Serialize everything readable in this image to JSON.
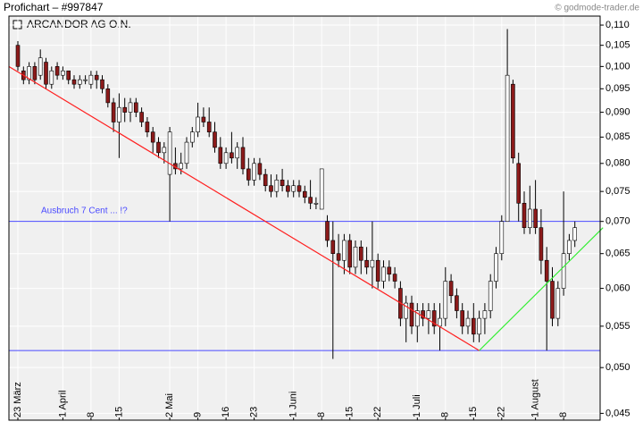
{
  "chart_data": {
    "type": "candlestick",
    "title": "Profichart – #997847",
    "source": "© godmode-trader.de",
    "annotation": "Ausbruch 7 Cent  ... !?",
    "log_scale": true,
    "grid": true,
    "ylim": [
      0.0443,
      0.1123
    ],
    "yticks": [
      {
        "value": 0.045,
        "label": "0,045"
      },
      {
        "value": 0.05,
        "label": "0,050"
      },
      {
        "value": 0.055,
        "label": "0,055"
      },
      {
        "value": 0.06,
        "label": "0,060"
      },
      {
        "value": 0.065,
        "label": "0,065"
      },
      {
        "value": 0.07,
        "label": "0,070"
      },
      {
        "value": 0.075,
        "label": "0,075"
      },
      {
        "value": 0.08,
        "label": "0,080"
      },
      {
        "value": 0.085,
        "label": "0,085"
      },
      {
        "value": 0.09,
        "label": "0,090"
      },
      {
        "value": 0.095,
        "label": "0,095"
      },
      {
        "value": 0.1,
        "label": "0,100"
      },
      {
        "value": 0.105,
        "label": "0,105"
      },
      {
        "value": 0.11,
        "label": "0,110"
      }
    ],
    "categories": [
      "23 März",
      null,
      null,
      null,
      null,
      null,
      null,
      null,
      "1 April",
      null,
      null,
      null,
      null,
      "8",
      null,
      null,
      null,
      null,
      "15",
      null,
      null,
      null,
      null,
      null,
      null,
      null,
      null,
      "2 Mai",
      null,
      null,
      null,
      null,
      "9",
      null,
      null,
      null,
      null,
      "16",
      null,
      null,
      null,
      null,
      "23",
      null,
      null,
      null,
      null,
      null,
      null,
      "1 Juni",
      null,
      null,
      null,
      null,
      "8",
      null,
      null,
      null,
      null,
      "15",
      null,
      null,
      null,
      null,
      "22",
      null,
      null,
      null,
      null,
      null,
      null,
      "1 Juli",
      null,
      null,
      null,
      null,
      "8",
      null,
      null,
      null,
      null,
      "15",
      null,
      null,
      null,
      null,
      "22",
      null,
      null,
      null,
      null,
      null,
      "1 August",
      null,
      null,
      null,
      null,
      "8",
      null,
      null
    ],
    "series": [
      {
        "name": "ARCANDOR AG O.N.",
        "up_color": "#ffffff",
        "down_color": "#8b1a1a",
        "ohlc": [
          [
            0.105,
            0.106,
            0.099,
            0.1
          ],
          [
            0.099,
            0.1,
            0.096,
            0.097
          ],
          [
            0.097,
            0.101,
            0.096,
            0.1
          ],
          [
            0.1,
            0.101,
            0.096,
            0.097
          ],
          [
            0.098,
            0.104,
            0.097,
            0.102
          ],
          [
            0.101,
            0.102,
            0.095,
            0.096
          ],
          [
            0.096,
            0.1,
            0.095,
            0.099
          ],
          [
            0.1,
            0.101,
            0.097,
            0.098
          ],
          [
            0.098,
            0.1,
            0.097,
            0.099
          ],
          [
            0.099,
            0.099,
            0.096,
            0.097
          ],
          [
            0.097,
            0.098,
            0.095,
            0.096
          ],
          [
            0.096,
            0.098,
            0.095,
            0.097
          ],
          [
            0.097,
            0.098,
            0.096,
            0.097
          ],
          [
            0.096,
            0.099,
            0.095,
            0.098
          ],
          [
            0.098,
            0.099,
            0.095,
            0.097
          ],
          [
            0.097,
            0.098,
            0.094,
            0.095
          ],
          [
            0.095,
            0.096,
            0.091,
            0.092
          ],
          [
            0.092,
            0.093,
            0.086,
            0.088
          ],
          [
            0.088,
            0.094,
            0.081,
            0.091
          ],
          [
            0.091,
            0.093,
            0.088,
            0.09
          ],
          [
            0.09,
            0.093,
            0.088,
            0.092
          ],
          [
            0.092,
            0.093,
            0.089,
            0.09
          ],
          [
            0.09,
            0.091,
            0.087,
            0.088
          ],
          [
            0.088,
            0.089,
            0.085,
            0.086
          ],
          [
            0.086,
            0.087,
            0.082,
            0.084
          ],
          [
            0.084,
            0.085,
            0.081,
            0.082
          ],
          [
            0.082,
            0.084,
            0.08,
            0.083
          ],
          [
            0.078,
            0.087,
            0.07,
            0.086
          ],
          [
            0.08,
            0.083,
            0.078,
            0.079
          ],
          [
            0.079,
            0.082,
            0.078,
            0.08
          ],
          [
            0.08,
            0.085,
            0.079,
            0.084
          ],
          [
            0.084,
            0.087,
            0.083,
            0.086
          ],
          [
            0.086,
            0.092,
            0.085,
            0.089
          ],
          [
            0.089,
            0.091,
            0.087,
            0.088
          ],
          [
            0.088,
            0.091,
            0.085,
            0.086
          ],
          [
            0.086,
            0.088,
            0.082,
            0.083
          ],
          [
            0.083,
            0.085,
            0.079,
            0.08
          ],
          [
            0.08,
            0.083,
            0.079,
            0.082
          ],
          [
            0.082,
            0.086,
            0.08,
            0.081
          ],
          [
            0.081,
            0.084,
            0.079,
            0.083
          ],
          [
            0.083,
            0.085,
            0.078,
            0.079
          ],
          [
            0.079,
            0.081,
            0.076,
            0.077
          ],
          [
            0.077,
            0.081,
            0.076,
            0.08
          ],
          [
            0.08,
            0.081,
            0.077,
            0.078
          ],
          [
            0.078,
            0.079,
            0.075,
            0.076
          ],
          [
            0.076,
            0.078,
            0.074,
            0.075
          ],
          [
            0.075,
            0.078,
            0.074,
            0.077
          ],
          [
            0.077,
            0.079,
            0.075,
            0.076
          ],
          [
            0.076,
            0.077,
            0.074,
            0.075
          ],
          [
            0.075,
            0.077,
            0.074,
            0.076
          ],
          [
            0.076,
            0.077,
            0.074,
            0.075
          ],
          [
            0.075,
            0.076,
            0.073,
            0.074
          ],
          [
            0.074,
            0.077,
            0.072,
            0.073
          ],
          [
            0.073,
            0.074,
            0.072,
            0.073
          ],
          [
            0.072,
            0.079,
            0.072,
            0.079
          ],
          [
            0.07,
            0.071,
            0.066,
            0.067
          ],
          [
            0.067,
            0.07,
            0.051,
            0.065
          ],
          [
            0.065,
            0.068,
            0.063,
            0.064
          ],
          [
            0.064,
            0.068,
            0.062,
            0.067
          ],
          [
            0.067,
            0.068,
            0.062,
            0.063
          ],
          [
            0.063,
            0.067,
            0.062,
            0.066
          ],
          [
            0.066,
            0.067,
            0.062,
            0.064
          ],
          [
            0.064,
            0.066,
            0.062,
            0.063
          ],
          [
            0.063,
            0.07,
            0.06,
            0.064
          ],
          [
            0.064,
            0.065,
            0.06,
            0.061
          ],
          [
            0.061,
            0.064,
            0.06,
            0.063
          ],
          [
            0.063,
            0.064,
            0.061,
            0.062
          ],
          [
            0.062,
            0.063,
            0.06,
            0.061
          ],
          [
            0.06,
            0.061,
            0.055,
            0.056
          ],
          [
            0.056,
            0.059,
            0.053,
            0.058
          ],
          [
            0.058,
            0.059,
            0.054,
            0.055
          ],
          [
            0.055,
            0.058,
            0.053,
            0.057
          ],
          [
            0.057,
            0.058,
            0.055,
            0.056
          ],
          [
            0.056,
            0.058,
            0.054,
            0.057
          ],
          [
            0.057,
            0.058,
            0.054,
            0.055
          ],
          [
            0.055,
            0.058,
            0.052,
            0.056
          ],
          [
            0.056,
            0.063,
            0.055,
            0.061
          ],
          [
            0.061,
            0.062,
            0.058,
            0.059
          ],
          [
            0.059,
            0.06,
            0.056,
            0.057
          ],
          [
            0.057,
            0.058,
            0.054,
            0.055
          ],
          [
            0.055,
            0.057,
            0.054,
            0.056
          ],
          [
            0.056,
            0.058,
            0.053,
            0.054
          ],
          [
            0.054,
            0.057,
            0.053,
            0.056
          ],
          [
            0.056,
            0.058,
            0.054,
            0.057
          ],
          [
            0.057,
            0.062,
            0.056,
            0.061
          ],
          [
            0.061,
            0.066,
            0.06,
            0.065
          ],
          [
            0.065,
            0.071,
            0.064,
            0.07
          ],
          [
            0.07,
            0.109,
            0.07,
            0.098
          ],
          [
            0.096,
            0.097,
            0.08,
            0.081
          ],
          [
            0.08,
            0.082,
            0.07,
            0.073
          ],
          [
            0.073,
            0.075,
            0.068,
            0.069
          ],
          [
            0.069,
            0.076,
            0.068,
            0.072
          ],
          [
            0.072,
            0.077,
            0.068,
            0.069
          ],
          [
            0.069,
            0.072,
            0.062,
            0.064
          ],
          [
            0.064,
            0.066,
            0.052,
            0.061
          ],
          [
            0.061,
            0.063,
            0.055,
            0.056
          ],
          [
            0.056,
            0.061,
            0.055,
            0.06
          ],
          [
            0.06,
            0.075,
            0.059,
            0.065
          ],
          [
            0.065,
            0.068,
            0.064,
            0.067
          ],
          [
            0.067,
            0.07,
            0.066,
            0.069
          ]
        ]
      }
    ],
    "hlines": [
      {
        "value": 0.07,
        "color": "#4a4aff"
      },
      {
        "value": 0.052,
        "color": "#4a4aff"
      }
    ],
    "trend_lines": [
      {
        "color": "#ff2020",
        "x": [
          -1.6,
          82
        ],
        "y": [
          0.1,
          0.052
        ]
      },
      {
        "color": "#33ee33",
        "x": [
          82,
          104
        ],
        "y": [
          0.052,
          0.069
        ]
      }
    ]
  }
}
